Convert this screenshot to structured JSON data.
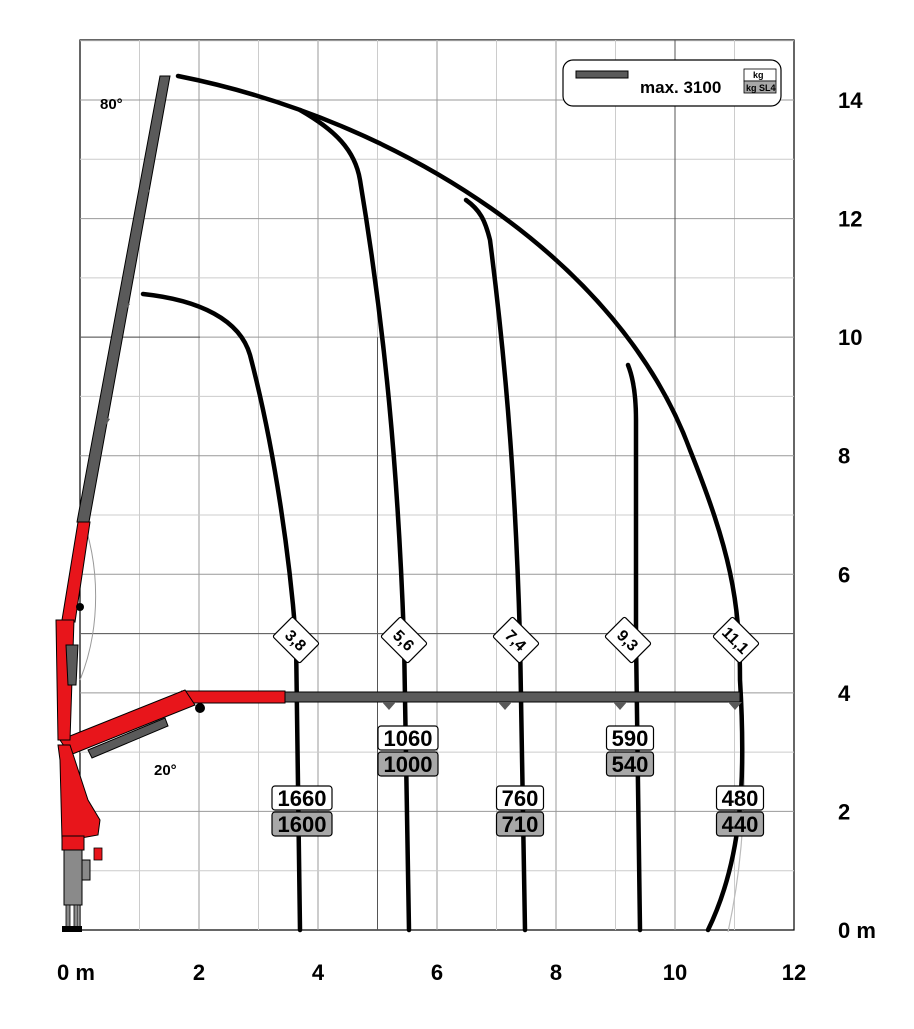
{
  "diagram": {
    "legend": {
      "max_label": "max. 3100",
      "unit_kg": "kg",
      "unit_sl": "kg SL4"
    },
    "x_axis": {
      "ticks": [
        {
          "value": 0,
          "label": "0 m"
        },
        {
          "value": 2,
          "label": "2"
        },
        {
          "value": 4,
          "label": "4"
        },
        {
          "value": 6,
          "label": "6"
        },
        {
          "value": 8,
          "label": "8"
        },
        {
          "value": 10,
          "label": "10"
        },
        {
          "value": 12,
          "label": "12"
        }
      ],
      "range": [
        0,
        12
      ]
    },
    "y_axis": {
      "ticks": [
        {
          "value": 0,
          "label": "0 m"
        },
        {
          "value": 2,
          "label": "2"
        },
        {
          "value": 4,
          "label": "4"
        },
        {
          "value": 6,
          "label": "6"
        },
        {
          "value": 8,
          "label": "8"
        },
        {
          "value": 10,
          "label": "10"
        },
        {
          "value": 12,
          "label": "12"
        },
        {
          "value": 14,
          "label": "14"
        }
      ],
      "range": [
        0,
        14.5
      ]
    },
    "angles": {
      "top": "80°",
      "bottom": "20°"
    },
    "reach_tags": [
      "3,8",
      "5,6",
      "7,4",
      "9,3",
      "11,1"
    ],
    "loads": [
      {
        "top": "1660",
        "bottom": "1600"
      },
      {
        "top": "1060",
        "bottom": "1000"
      },
      {
        "top": "760",
        "bottom": "710"
      },
      {
        "top": "590",
        "bottom": "540"
      },
      {
        "top": "480",
        "bottom": "440"
      }
    ],
    "colors": {
      "boom_red": "#e8151b",
      "boom_grey": "#5a5a5a",
      "label_grey": "#a8a8a8"
    }
  }
}
